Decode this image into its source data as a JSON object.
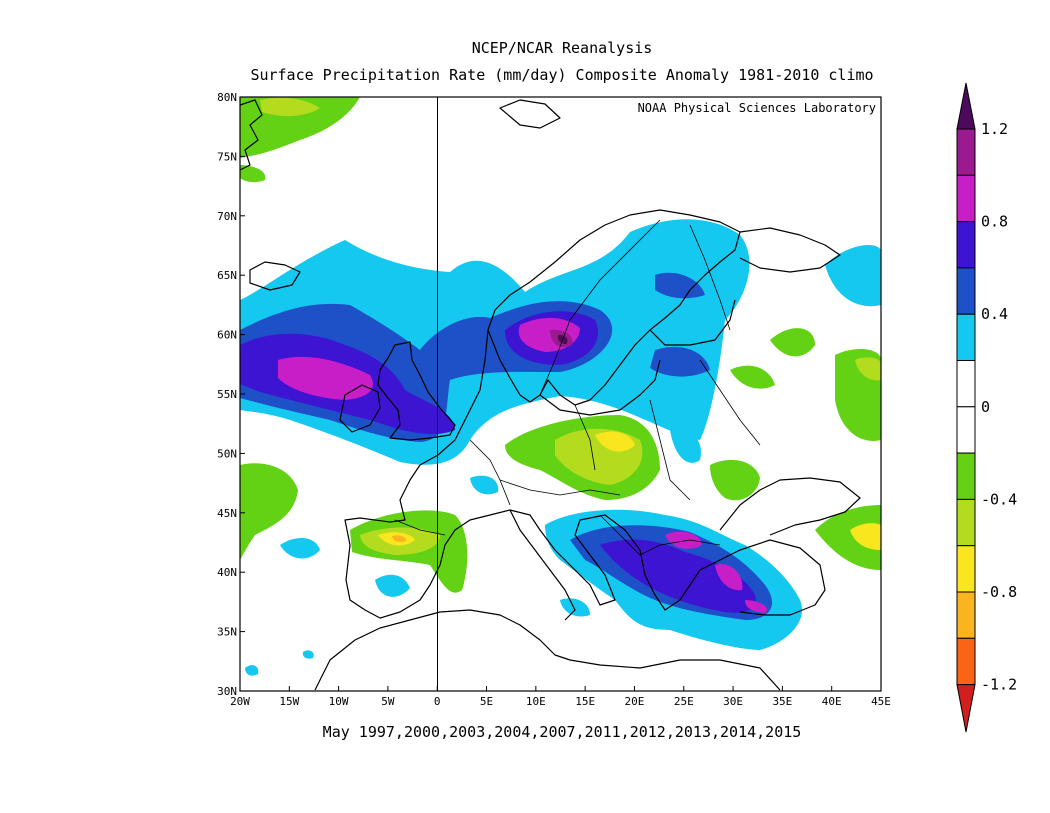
{
  "titles": {
    "line1": "NCEP/NCAR Reanalysis",
    "line2": "Surface Precipitation Rate (mm/day) Composite Anomaly 1981-2010 climo"
  },
  "source_label": "NOAA Physical Sciences Laboratory",
  "footer": "May 1997,2000,2003,2004,2007,2011,2012,2013,2014,2015",
  "map": {
    "lon_range": [
      -20,
      45
    ],
    "lat_range": [
      30,
      80
    ],
    "lon_ticks": [
      "20W",
      "15W",
      "10W",
      "5W",
      "0",
      "5E",
      "10E",
      "15E",
      "20E",
      "25E",
      "30E",
      "35E",
      "40E",
      "45E"
    ],
    "lat_ticks": [
      "30N",
      "35N",
      "40N",
      "45N",
      "50N",
      "55N",
      "60N",
      "65N",
      "70N",
      "75N",
      "80N"
    ]
  },
  "colorbar": {
    "labels": [
      "1.2",
      "0.8",
      "0.4",
      "0",
      "-0.4",
      "-0.8",
      "-1.2"
    ],
    "colors": {
      "top_arrow": "#4d0a5c",
      "b_1_0_1_2": "#9c1a8f",
      "b_0_8_1_0": "#c81ec8",
      "b_0_6_0_8": "#3c14d2",
      "b_0_4_0_6": "#1e50c8",
      "b_0_2_0_4": "#14c8f0",
      "b_neutral": "#ffffff",
      "b_m0_4_m0_2": "#64d214",
      "b_m0_6_m0_4": "#b4dc1e",
      "b_m0_8_m0_6": "#fae61e",
      "b_m1_0_m0_8": "#fab41e",
      "b_m1_2_m1_0": "#fa6414",
      "bottom_arrow": "#d21e1e"
    }
  }
}
